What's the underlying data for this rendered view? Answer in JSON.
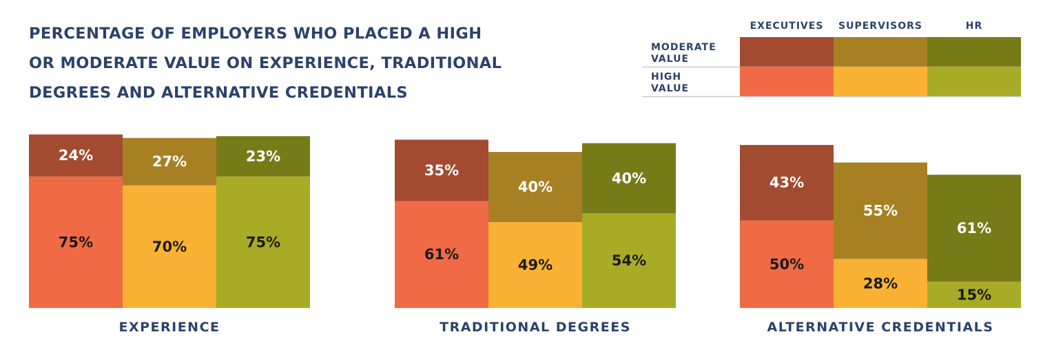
{
  "chart_data": {
    "type": "bar",
    "stacked": true,
    "title_lines": [
      "PERCENTAGE OF EMPLOYERS WHO PLACED A HIGH",
      "OR MODERATE VALUE ON EXPERIENCE, TRADITIONAL",
      "DEGREES AND ALTERNATIVE CREDENTIALS"
    ],
    "categories": [
      "EXPERIENCE",
      "TRADITIONAL DEGREES",
      "ALTERNATIVE CREDENTIALS"
    ],
    "groups": [
      "EXECUTIVES",
      "SUPERVISORS",
      "HR"
    ],
    "stack_levels": [
      {
        "name_lines": [
          "HIGH",
          "VALUE"
        ]
      },
      {
        "name_lines": [
          "MODERATE",
          "VALUE"
        ]
      }
    ],
    "series": [
      {
        "group": "EXECUTIVES",
        "level": "HIGH VALUE",
        "values": [
          75,
          61,
          50
        ],
        "labels": [
          "75%",
          "61%",
          "50%"
        ]
      },
      {
        "group": "EXECUTIVES",
        "level": "MODERATE VALUE",
        "values": [
          24,
          35,
          43
        ],
        "labels": [
          "24%",
          "35%",
          "43%"
        ]
      },
      {
        "group": "SUPERVISORS",
        "level": "HIGH VALUE",
        "values": [
          70,
          49,
          28
        ],
        "labels": [
          "70%",
          "49%",
          "28%"
        ]
      },
      {
        "group": "SUPERVISORS",
        "level": "MODERATE VALUE",
        "values": [
          27,
          40,
          55
        ],
        "labels": [
          "27%",
          "40%",
          "55%"
        ]
      },
      {
        "group": "HR",
        "level": "HIGH VALUE",
        "values": [
          75,
          54,
          15
        ],
        "labels": [
          "75%",
          "54%",
          "15%"
        ]
      },
      {
        "group": "HR",
        "level": "MODERATE VALUE",
        "values": [
          23,
          40,
          61
        ],
        "labels": [
          "23%",
          "40%",
          "61%"
        ]
      }
    ],
    "colors": {
      "EXECUTIVES": {
        "high": "#f06a46",
        "moderate": "#a24b30"
      },
      "SUPERVISORS": {
        "high": "#f9b233",
        "moderate": "#a88024"
      },
      "HR": {
        "high": "#a8ab25",
        "moderate": "#767b18"
      }
    },
    "label_colors": {
      "high": "#1a1a1a",
      "moderate": "#ffffff"
    },
    "ylim": [
      0,
      100
    ],
    "legend": "top-right",
    "grid": false
  }
}
